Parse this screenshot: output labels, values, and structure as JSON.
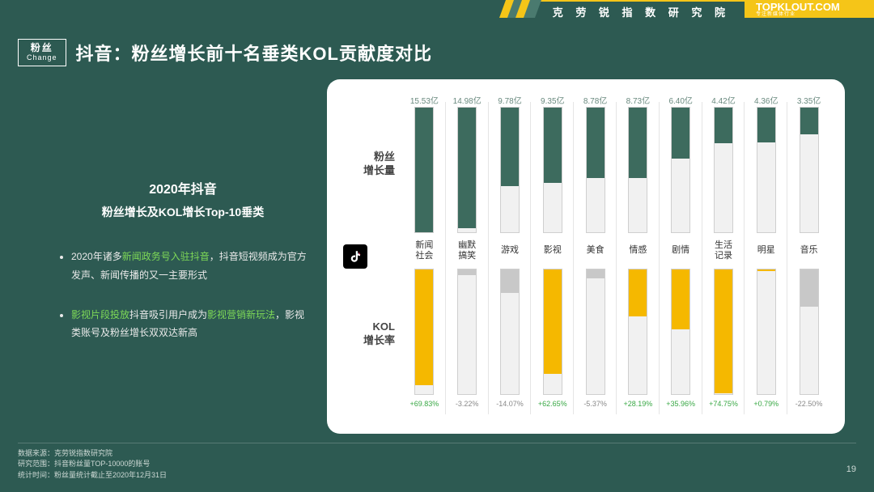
{
  "topbar": {
    "institute": "克 劳 锐 指 数 研 究 院",
    "brand": "TOPKLOUT.COM",
    "brand_sub": "专注新媒体行业"
  },
  "badge": {
    "cn": "粉丝",
    "en": "Change"
  },
  "title": "抖音：粉丝增长前十名垂类KOL贡献度对比",
  "left": {
    "heading1": "2020年抖音",
    "heading2": "粉丝增长及KOL增长Top-10垂类",
    "bullet1_pre": "2020年诸多",
    "bullet1_hl": "新闻政务号入驻抖音",
    "bullet1_post": "，抖音短视频成为官方发声、新闻传播的又一主要形式",
    "bullet2_hl1": "影视片段投放",
    "bullet2_mid": "抖音吸引用户成为",
    "bullet2_hl2": "影视营销新玩法",
    "bullet2_post": "，影视类账号及粉丝增长双双达新高"
  },
  "chart": {
    "axis_top": "粉丝\n增长量",
    "axis_bot": "KOL\n增长率",
    "top_max": 15.53,
    "top_fill_color": "#3d6b5e",
    "top_fill_color_alt": "#c8c8c8",
    "bot_fill_color_pos": "#f5b800",
    "bot_fill_color_neg": "#c8c8c8",
    "rate_abs_max": 75,
    "categories": [
      {
        "name": "新闻\n社会",
        "growth": 15.53,
        "growth_label": "15.53亿",
        "rate": 69.83,
        "rate_label": "+69.83%"
      },
      {
        "name": "幽默\n搞笑",
        "growth": 14.98,
        "growth_label": "14.98亿",
        "rate": -3.22,
        "rate_label": "-3.22%"
      },
      {
        "name": "游戏",
        "growth": 9.78,
        "growth_label": "9.78亿",
        "rate": -14.07,
        "rate_label": "-14.07%"
      },
      {
        "name": "影视",
        "growth": 9.35,
        "growth_label": "9.35亿",
        "rate": 62.65,
        "rate_label": "+62.65%"
      },
      {
        "name": "美食",
        "growth": 8.78,
        "growth_label": "8.78亿",
        "rate": -5.37,
        "rate_label": "-5.37%"
      },
      {
        "name": "情感",
        "growth": 8.73,
        "growth_label": "8.73亿",
        "rate": 28.19,
        "rate_label": "+28.19%"
      },
      {
        "name": "剧情",
        "growth": 6.4,
        "growth_label": "6.40亿",
        "rate": 35.96,
        "rate_label": "+35.96%"
      },
      {
        "name": "生活\n记录",
        "growth": 4.42,
        "growth_label": "4.42亿",
        "rate": 74.75,
        "rate_label": "+74.75%"
      },
      {
        "name": "明星",
        "growth": 4.36,
        "growth_label": "4.36亿",
        "rate": 0.79,
        "rate_label": "+0.79%"
      },
      {
        "name": "音乐",
        "growth": 3.35,
        "growth_label": "3.35亿",
        "rate": -22.5,
        "rate_label": "-22.50%"
      }
    ]
  },
  "footer": {
    "l1": "数据来源：克劳锐指数研究院",
    "l2": "研究范围：抖音粉丝量TOP-10000的账号",
    "l3": "统计时间：粉丝量统计截止至2020年12月31日"
  },
  "page_num": "19"
}
